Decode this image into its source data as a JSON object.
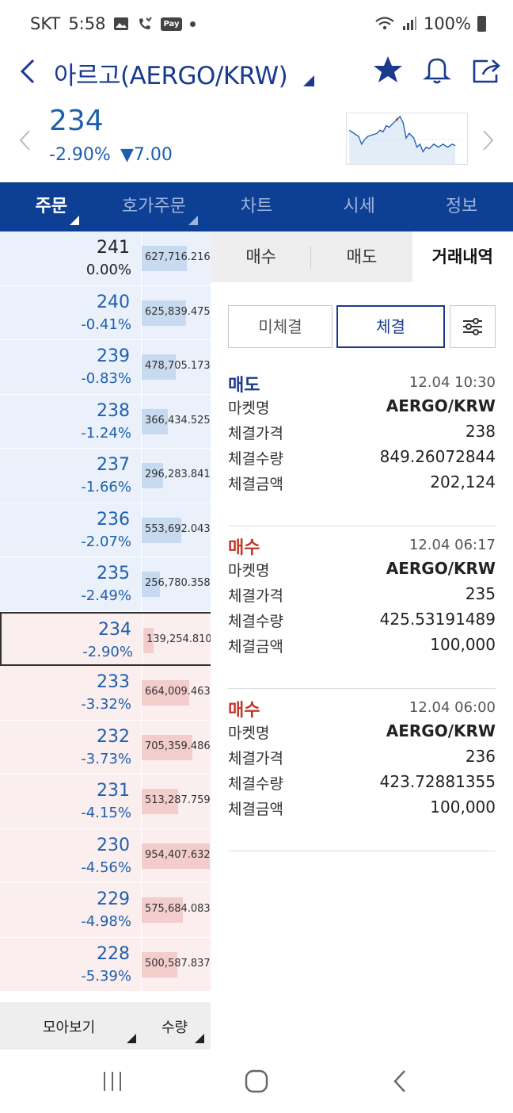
{
  "status_bar": {
    "carrier": "SKT",
    "time": "5:58",
    "pay_label": "Pay",
    "battery": "100%"
  },
  "header": {
    "title": "아르고(AERGO/KRW)"
  },
  "price": {
    "current": "234",
    "change_pct": "-2.90%",
    "change_abs": "▼7.00"
  },
  "main_tabs": [
    "주문",
    "호가주문",
    "차트",
    "시세",
    "정보"
  ],
  "order_book": {
    "rows": [
      {
        "price": "241",
        "pct": "0.00%",
        "qty": "627,716.216",
        "side": "ask",
        "ratio": 0.66
      },
      {
        "price": "240",
        "pct": "-0.41%",
        "qty": "625,839.475",
        "side": "ask",
        "ratio": 0.65
      },
      {
        "price": "239",
        "pct": "-0.83%",
        "qty": "478,705.173",
        "side": "ask",
        "ratio": 0.5
      },
      {
        "price": "238",
        "pct": "-1.24%",
        "qty": "366,434.525",
        "side": "ask",
        "ratio": 0.38
      },
      {
        "price": "237",
        "pct": "-1.66%",
        "qty": "296,283.841",
        "side": "ask",
        "ratio": 0.31
      },
      {
        "price": "236",
        "pct": "-2.07%",
        "qty": "553,692.043",
        "side": "ask",
        "ratio": 0.58
      },
      {
        "price": "235",
        "pct": "-2.49%",
        "qty": "256,780.358",
        "side": "ask",
        "ratio": 0.27
      },
      {
        "price": "234",
        "pct": "-2.90%",
        "qty": "139,254.810",
        "side": "bid",
        "ratio": 0.15,
        "current": true
      },
      {
        "price": "233",
        "pct": "-3.32%",
        "qty": "664,009.463",
        "side": "bid",
        "ratio": 0.7
      },
      {
        "price": "232",
        "pct": "-3.73%",
        "qty": "705,359.486",
        "side": "bid",
        "ratio": 0.74
      },
      {
        "price": "231",
        "pct": "-4.15%",
        "qty": "513,287.759",
        "side": "bid",
        "ratio": 0.54
      },
      {
        "price": "230",
        "pct": "-4.56%",
        "qty": "954,407.632",
        "side": "bid",
        "ratio": 1.0
      },
      {
        "price": "229",
        "pct": "-4.98%",
        "qty": "575,684.083",
        "side": "bid",
        "ratio": 0.6
      },
      {
        "price": "228",
        "pct": "-5.39%",
        "qty": "500,587.837",
        "side": "bid",
        "ratio": 0.52
      }
    ],
    "footer": {
      "group_label": "모아보기",
      "qty_label": "수량"
    }
  },
  "sub_tabs": [
    "매수",
    "매도",
    "거래내역"
  ],
  "filters": {
    "pending": "미체결",
    "filled": "체결"
  },
  "trades": [
    {
      "type": "매도",
      "side": "sell",
      "time": "12.04 10:30",
      "market": "AERGO/KRW",
      "price": "238",
      "qty": "849.26072844",
      "amount": "202,124"
    },
    {
      "type": "매수",
      "side": "buy",
      "time": "12.04 06:17",
      "market": "AERGO/KRW",
      "price": "235",
      "qty": "425.53191489",
      "amount": "100,000"
    },
    {
      "type": "매수",
      "side": "buy",
      "time": "12.04 06:00",
      "market": "AERGO/KRW",
      "price": "236",
      "qty": "423.72881355",
      "amount": "100,000"
    }
  ],
  "trade_labels": {
    "market": "마켓명",
    "price": "체결가격",
    "qty": "체결수량",
    "amount": "체결금액"
  },
  "colors": {
    "primary": "#0d3f94",
    "rise": "#c0392b",
    "fall": "#1e5fae",
    "ask_bg": "#eaf1fa",
    "bid_bg": "#fbeeee"
  }
}
